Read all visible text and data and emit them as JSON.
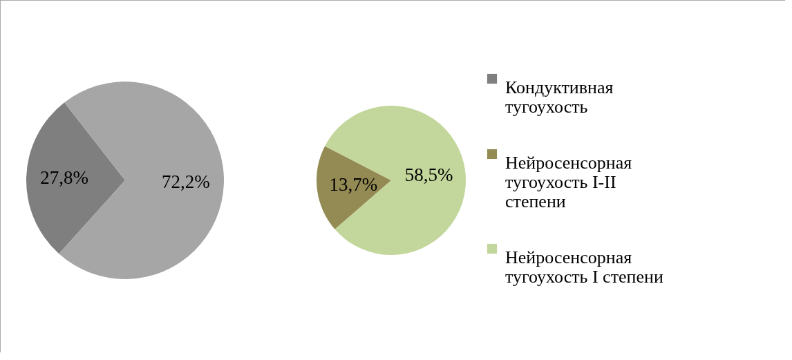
{
  "chart_data": [
    {
      "type": "pie",
      "categories": [
        "Кондуктивная тугоухость",
        null
      ],
      "values": [
        27.8,
        72.2
      ],
      "colors": [
        "#7f7f7f",
        "#a6a6a6"
      ],
      "value_labels": [
        "27,8%",
        "72,2%"
      ],
      "legend": "right"
    },
    {
      "type": "pie",
      "categories": [
        "Нейросенсорная тугоухость I-II степени",
        "Нейросенсорная тугоухость I степени"
      ],
      "values": [
        13.7,
        58.5
      ],
      "colors": [
        "#948a54",
        "#c3d69b"
      ],
      "value_labels": [
        "13,7%",
        "58,5%"
      ],
      "legend": "right"
    }
  ]
}
